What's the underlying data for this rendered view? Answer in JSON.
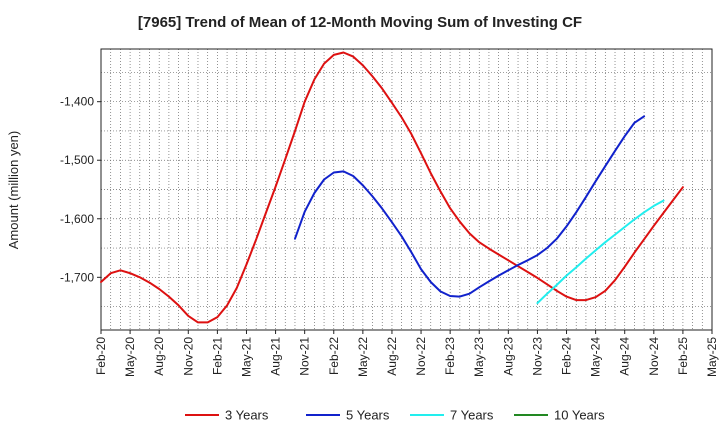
{
  "chart_data": {
    "type": "line",
    "title": "[7965]  Trend of Mean of 12-Month Moving Sum of Investing CF",
    "xlabel": "",
    "ylabel": "Amount (million yen)",
    "ylim": [
      -1790,
      -1310
    ],
    "yticks": [
      -1400,
      -1500,
      -1600,
      -1700
    ],
    "ytick_labels": [
      "-1,400",
      "-1,500",
      "-1,600",
      "-1,700"
    ],
    "x_start": "2020-02",
    "x_end": "2025-05",
    "xtick_labels": [
      "Feb-20",
      "May-20",
      "Aug-20",
      "Nov-20",
      "Feb-21",
      "May-21",
      "Aug-21",
      "Nov-21",
      "Feb-22",
      "May-22",
      "Aug-22",
      "Nov-22",
      "Feb-23",
      "May-23",
      "Aug-23",
      "Nov-23",
      "Feb-24",
      "May-24",
      "Aug-24",
      "Nov-24",
      "Feb-25",
      "May-25"
    ],
    "grid": true,
    "legend_position": "bottom",
    "series": [
      {
        "name": "3 Years",
        "color": "#dd1111",
        "start": "2020-02",
        "values": [
          -1708,
          -1693,
          -1688,
          -1693,
          -1700,
          -1709,
          -1720,
          -1733,
          -1748,
          -1766,
          -1777,
          -1777,
          -1768,
          -1748,
          -1718,
          -1678,
          -1635,
          -1590,
          -1545,
          -1498,
          -1450,
          -1400,
          -1362,
          -1335,
          -1320,
          -1316,
          -1323,
          -1338,
          -1357,
          -1378,
          -1402,
          -1427,
          -1455,
          -1488,
          -1522,
          -1553,
          -1582,
          -1605,
          -1625,
          -1640,
          -1651,
          -1661,
          -1671,
          -1681,
          -1691,
          -1701,
          -1712,
          -1723,
          -1733,
          -1739,
          -1739,
          -1734,
          -1723,
          -1705,
          -1682,
          -1658,
          -1635,
          -1612,
          -1590,
          -1568,
          -1546
        ]
      },
      {
        "name": "5 Years",
        "color": "#1122cc",
        "start": "2021-10",
        "values": [
          -1634,
          -1588,
          -1556,
          -1533,
          -1521,
          -1519,
          -1527,
          -1543,
          -1562,
          -1583,
          -1606,
          -1630,
          -1657,
          -1686,
          -1708,
          -1724,
          -1732,
          -1733,
          -1728,
          -1717,
          -1707,
          -1697,
          -1688,
          -1679,
          -1671,
          -1662,
          -1650,
          -1634,
          -1613,
          -1589,
          -1563,
          -1536,
          -1510,
          -1484,
          -1459,
          -1436,
          -1425
        ]
      },
      {
        "name": "7 Years",
        "color": "#22eeee",
        "start": "2023-11",
        "values": [
          -1744,
          -1728,
          -1713,
          -1697,
          -1683,
          -1668,
          -1654,
          -1640,
          -1627,
          -1614,
          -1601,
          -1589,
          -1578,
          -1569
        ]
      },
      {
        "name": "10 Years",
        "color": "#228822",
        "start": "2024-12",
        "values": []
      }
    ]
  }
}
